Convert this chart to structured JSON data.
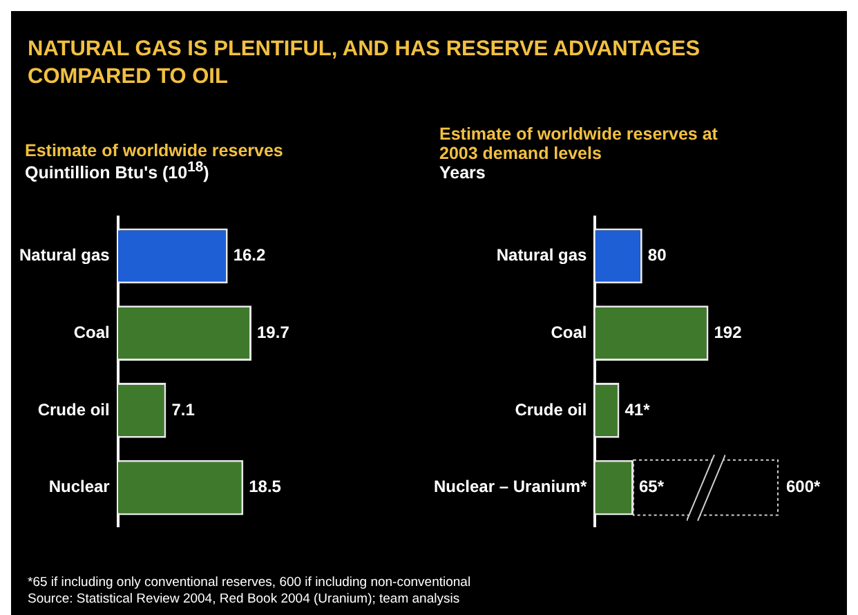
{
  "chart_data": [
    {
      "type": "bar",
      "orientation": "horizontal",
      "title": "NATURAL GAS IS PLENTIFUL, AND HAS RESERVE ADVANTAGES COMPARED TO OIL",
      "subtitle": "Estimate of worldwide reserves",
      "xlabel": "Quintillion Btu's (10$^{18}$)",
      "categories": [
        "Natural gas",
        "Coal",
        "Crude oil",
        "Nuclear"
      ],
      "values": [
        16.2,
        19.7,
        7.1,
        18.5
      ],
      "colors": [
        "#1f5fd6",
        "#3f7a2c",
        "#3f7a2c",
        "#3f7a2c"
      ],
      "data_labels": true,
      "tick_labels": "y",
      "annotations": [
        "*65 if including only conventional reserves, 600 if including non-conventional",
        "Source: Statistical Review 2004, Red Book 2004 (Uranium); team analysis"
      ]
    },
    {
      "type": "bar",
      "orientation": "horizontal",
      "subtitle": "Estimate of worldwide reserves at 2003 demand levels",
      "xlabel": "Years",
      "categories": [
        "Natural gas",
        "Coal",
        "Crude oil",
        "Nuclear – Uranium*"
      ],
      "values": [
        80,
        192,
        41,
        65
      ],
      "colors": [
        "#1f5fd6",
        "#3f7a2c",
        "#3f7a2c",
        "#3f7a2c"
      ],
      "value_labels": [
        "80",
        "192",
        "41*",
        "65*"
      ],
      "tick_labels": "y",
      "annotations": [
        "600*"
      ]
    }
  ]
}
